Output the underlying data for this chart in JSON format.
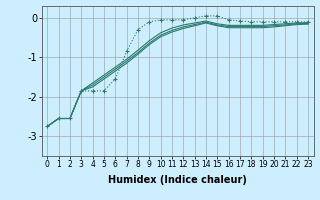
{
  "bg_color": "#cceeff",
  "line_color": "#2d7a6e",
  "grid_color": "#999999",
  "xlabel": "Humidex (Indice chaleur)",
  "ylim": [
    -3.5,
    0.3
  ],
  "xlim": [
    -0.5,
    23.5
  ],
  "yticks": [
    0,
    -1,
    -2,
    -3
  ],
  "xticks": [
    0,
    1,
    2,
    3,
    4,
    5,
    6,
    7,
    8,
    9,
    10,
    11,
    12,
    13,
    14,
    15,
    16,
    17,
    18,
    19,
    20,
    21,
    22,
    23
  ],
  "line1_x": [
    0,
    1,
    2,
    3,
    4,
    5,
    6,
    7,
    8,
    9,
    10,
    11,
    12,
    13,
    14,
    15,
    16,
    17,
    18,
    19,
    20,
    21,
    22,
    23
  ],
  "line1_y": [
    -2.75,
    -2.55,
    -2.55,
    -1.85,
    -1.85,
    -1.85,
    -1.55,
    -0.85,
    -0.3,
    -0.1,
    -0.05,
    -0.05,
    -0.05,
    0.0,
    0.05,
    0.05,
    -0.05,
    -0.08,
    -0.1,
    -0.1,
    -0.1,
    -0.1,
    -0.1,
    -0.1
  ],
  "line2_x": [
    0,
    1,
    2,
    3,
    4,
    5,
    6,
    7,
    8,
    9,
    10,
    11,
    12,
    13,
    14,
    15,
    16,
    17,
    18,
    19,
    20,
    21,
    22,
    23
  ],
  "line2_y": [
    -2.75,
    -2.55,
    -2.55,
    -1.85,
    -1.65,
    -1.45,
    -1.25,
    -1.05,
    -0.82,
    -0.58,
    -0.38,
    -0.26,
    -0.18,
    -0.13,
    -0.08,
    -0.15,
    -0.19,
    -0.19,
    -0.19,
    -0.19,
    -0.17,
    -0.15,
    -0.13,
    -0.12
  ],
  "line3_x": [
    0,
    1,
    2,
    3,
    4,
    5,
    6,
    7,
    8,
    9,
    10,
    11,
    12,
    13,
    14,
    15,
    16,
    17,
    18,
    19,
    20,
    21,
    22,
    23
  ],
  "line3_y": [
    -2.75,
    -2.55,
    -2.55,
    -1.85,
    -1.7,
    -1.5,
    -1.3,
    -1.1,
    -0.88,
    -0.64,
    -0.44,
    -0.32,
    -0.23,
    -0.17,
    -0.11,
    -0.18,
    -0.22,
    -0.22,
    -0.22,
    -0.22,
    -0.2,
    -0.18,
    -0.15,
    -0.14
  ],
  "line4_x": [
    0,
    1,
    2,
    3,
    4,
    5,
    6,
    7,
    8,
    9,
    10,
    11,
    12,
    13,
    14,
    15,
    16,
    17,
    18,
    19,
    20,
    21,
    22,
    23
  ],
  "line4_y": [
    -2.75,
    -2.55,
    -2.55,
    -1.85,
    -1.75,
    -1.55,
    -1.35,
    -1.15,
    -0.92,
    -0.68,
    -0.48,
    -0.36,
    -0.27,
    -0.2,
    -0.13,
    -0.2,
    -0.25,
    -0.25,
    -0.25,
    -0.25,
    -0.23,
    -0.2,
    -0.17,
    -0.16
  ],
  "xlabel_fontsize": 7,
  "ytick_fontsize": 7,
  "xtick_fontsize": 5.5
}
